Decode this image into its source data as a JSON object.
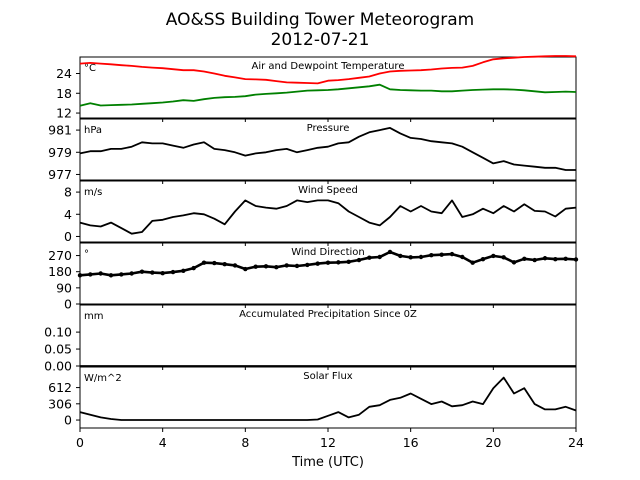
{
  "figure": {
    "title": "AO&SS Building Tower Meteorogram",
    "subtitle": "2012-07-21"
  },
  "chart_data": [
    {
      "type": "line",
      "title": "Air and Dewpoint Temperature",
      "ylabel": "°C",
      "xlabel": "",
      "xlim": [
        0,
        24
      ],
      "ylim": [
        10.5,
        29
      ],
      "yticks": [
        12,
        18,
        24
      ],
      "ytick_labels": [
        "12",
        "18",
        "24"
      ],
      "x": [
        0,
        0.5,
        1,
        1.5,
        2,
        2.5,
        3,
        3.5,
        4,
        4.5,
        5,
        5.5,
        6,
        6.5,
        7,
        7.5,
        8,
        8.5,
        9,
        9.5,
        10,
        10.5,
        11,
        11.5,
        12,
        12.5,
        13,
        13.5,
        14,
        14.5,
        15,
        15.5,
        16,
        16.5,
        17,
        17.5,
        18,
        18.5,
        19,
        19.5,
        20,
        20.5,
        21,
        21.5,
        22,
        22.5,
        23,
        23.5,
        24
      ],
      "series": [
        {
          "color": "#ff0000",
          "values": [
            27.0,
            27.2,
            27.0,
            26.8,
            26.5,
            26.3,
            26.0,
            25.8,
            25.6,
            25.3,
            25.0,
            25.0,
            24.6,
            24.0,
            23.3,
            22.8,
            22.3,
            22.2,
            22.1,
            21.7,
            21.3,
            21.2,
            21.1,
            21.0,
            21.8,
            22.0,
            22.3,
            22.7,
            23.1,
            24.0,
            24.6,
            24.8,
            24.9,
            25.0,
            25.2,
            25.5,
            25.7,
            25.8,
            26.3,
            27.4,
            28.3,
            28.6,
            28.8,
            29.0,
            29.1,
            29.2,
            29.3,
            29.3,
            29.2
          ]
        },
        {
          "color": "#008000",
          "values": [
            14.2,
            15.0,
            14.3,
            14.4,
            14.5,
            14.6,
            14.8,
            15.0,
            15.2,
            15.5,
            15.9,
            15.7,
            16.2,
            16.6,
            16.8,
            16.9,
            17.1,
            17.6,
            17.8,
            18.0,
            18.2,
            18.5,
            18.8,
            18.9,
            19.0,
            19.2,
            19.5,
            19.8,
            20.1,
            20.6,
            19.2,
            19.0,
            18.9,
            18.8,
            18.8,
            18.6,
            18.6,
            18.8,
            19.0,
            19.1,
            19.2,
            19.2,
            19.1,
            18.9,
            18.6,
            18.3,
            18.4,
            18.5,
            18.4
          ]
        }
      ]
    },
    {
      "type": "line",
      "title": "Pressure",
      "ylabel": "hPa",
      "xlabel": "",
      "xlim": [
        0,
        24
      ],
      "ylim": [
        976.5,
        982
      ],
      "yticks": [
        977,
        979,
        981
      ],
      "ytick_labels": [
        "977",
        "979",
        "981"
      ],
      "x": [
        0,
        0.5,
        1,
        1.5,
        2,
        2.5,
        3,
        3.5,
        4,
        4.5,
        5,
        5.5,
        6,
        6.5,
        7,
        7.5,
        8,
        8.5,
        9,
        9.5,
        10,
        10.5,
        11,
        11.5,
        12,
        12.5,
        13,
        13.5,
        14,
        14.5,
        15,
        15.5,
        16,
        16.5,
        17,
        17.5,
        18,
        18.5,
        19,
        19.5,
        20,
        20.5,
        21,
        21.5,
        22,
        22.5,
        23,
        23.5,
        24
      ],
      "series": [
        {
          "color": "#000000",
          "values": [
            978.9,
            979.1,
            979.1,
            979.3,
            979.3,
            979.5,
            979.9,
            979.8,
            979.8,
            979.6,
            979.4,
            979.7,
            979.9,
            979.3,
            979.2,
            979.0,
            978.7,
            978.9,
            979.0,
            979.2,
            979.3,
            979.0,
            979.2,
            979.4,
            979.5,
            979.8,
            979.9,
            980.4,
            980.8,
            981.0,
            981.2,
            980.7,
            980.3,
            980.2,
            980.0,
            979.9,
            979.8,
            979.5,
            979.0,
            978.5,
            978.0,
            978.2,
            977.9,
            977.8,
            977.7,
            977.6,
            977.6,
            977.4,
            977.4
          ]
        }
      ]
    },
    {
      "type": "line",
      "title": "Wind Speed",
      "ylabel": "m/s",
      "xlabel": "",
      "xlim": [
        0,
        24
      ],
      "ylim": [
        -1,
        10
      ],
      "yticks": [
        0,
        4,
        8
      ],
      "ytick_labels": [
        "0",
        "4",
        "8"
      ],
      "x": [
        0,
        0.5,
        1,
        1.5,
        2,
        2.5,
        3,
        3.5,
        4,
        4.5,
        5,
        5.5,
        6,
        6.5,
        7,
        7.5,
        8,
        8.5,
        9,
        9.5,
        10,
        10.5,
        11,
        11.5,
        12,
        12.5,
        13,
        13.5,
        14,
        14.5,
        15,
        15.5,
        16,
        16.5,
        17,
        17.5,
        18,
        18.5,
        19,
        19.5,
        20,
        20.5,
        21,
        21.5,
        22,
        22.5,
        23,
        23.5,
        24
      ],
      "series": [
        {
          "color": "#000000",
          "values": [
            2.5,
            2.0,
            1.8,
            2.5,
            1.5,
            0.5,
            0.8,
            2.8,
            3.0,
            3.5,
            3.8,
            4.2,
            4.0,
            3.2,
            2.2,
            4.5,
            6.5,
            5.5,
            5.2,
            5.0,
            5.5,
            6.5,
            6.2,
            6.5,
            6.5,
            6.0,
            4.5,
            3.5,
            2.5,
            2.0,
            3.5,
            5.5,
            4.5,
            5.5,
            4.5,
            4.2,
            6.5,
            3.5,
            4.0,
            5.0,
            4.2,
            5.5,
            4.5,
            5.8,
            4.6,
            4.5,
            3.6,
            5.0,
            5.2
          ]
        }
      ]
    },
    {
      "type": "scatter",
      "title": "Wind Direction",
      "ylabel": "°",
      "xlabel": "",
      "xlim": [
        0,
        24
      ],
      "ylim": [
        0,
        340
      ],
      "yticks": [
        0,
        90,
        180,
        270
      ],
      "ytick_labels": [
        "0",
        "90",
        "180",
        "270"
      ],
      "x": [
        0,
        0.5,
        1,
        1.5,
        2,
        2.5,
        3,
        3.5,
        4,
        4.5,
        5,
        5.5,
        6,
        6.5,
        7,
        7.5,
        8,
        8.5,
        9,
        9.5,
        10,
        10.5,
        11,
        11.5,
        12,
        12.5,
        13,
        13.5,
        14,
        14.5,
        15,
        15.5,
        16,
        16.5,
        17,
        17.5,
        18,
        18.5,
        19,
        19.5,
        20,
        20.5,
        21,
        21.5,
        22,
        22.5,
        23,
        23.5,
        24
      ],
      "series": [
        {
          "color": "#000000",
          "values": [
            160,
            165,
            170,
            160,
            165,
            170,
            180,
            175,
            172,
            178,
            185,
            200,
            230,
            228,
            222,
            215,
            195,
            208,
            210,
            205,
            215,
            212,
            218,
            225,
            230,
            232,
            235,
            245,
            258,
            262,
            290,
            268,
            260,
            262,
            272,
            275,
            278,
            262,
            230,
            250,
            268,
            260,
            232,
            252,
            245,
            255,
            250,
            252,
            248
          ]
        }
      ]
    },
    {
      "type": "line",
      "title": "Accumulated Precipitation Since 0Z",
      "ylabel": "mm",
      "xlabel": "",
      "xlim": [
        0,
        24
      ],
      "ylim": [
        0,
        0.18
      ],
      "yticks": [
        0.0,
        0.05,
        0.1
      ],
      "ytick_labels": [
        "0.00",
        "0.05",
        "0.10"
      ],
      "x": [
        0,
        24
      ],
      "series": [
        {
          "color": "#000000",
          "values": [
            0,
            0
          ]
        }
      ]
    },
    {
      "type": "line",
      "title": "Solar Flux",
      "ylabel": "W/m^2",
      "xlabel": "Time (UTC)",
      "xlim": [
        0,
        24
      ],
      "xticks": [
        0,
        4,
        8,
        12,
        16,
        20,
        24
      ],
      "xtick_labels": [
        "0",
        "4",
        "8",
        "12",
        "16",
        "20",
        "24"
      ],
      "ylim": [
        -150,
        1000
      ],
      "yticks": [
        0,
        306,
        612
      ],
      "ytick_labels": [
        "0",
        "306",
        "612"
      ],
      "x": [
        0,
        0.5,
        1,
        1.5,
        2,
        3,
        4,
        5,
        6,
        7,
        8,
        9,
        10,
        11,
        11.5,
        12,
        12.5,
        13,
        13.5,
        14,
        14.5,
        15,
        15.5,
        16,
        16.5,
        17,
        17.5,
        18,
        18.5,
        19,
        19.5,
        20,
        20.5,
        21,
        21.5,
        22,
        22.5,
        23,
        23.5,
        24
      ],
      "series": [
        {
          "color": "#000000",
          "values": [
            150,
            100,
            50,
            20,
            0,
            0,
            0,
            0,
            0,
            0,
            0,
            0,
            0,
            0,
            10,
            80,
            150,
            50,
            100,
            250,
            280,
            380,
            420,
            500,
            400,
            300,
            350,
            260,
            280,
            350,
            300,
            600,
            800,
            500,
            600,
            300,
            200,
            200,
            250,
            180
          ]
        }
      ]
    }
  ]
}
